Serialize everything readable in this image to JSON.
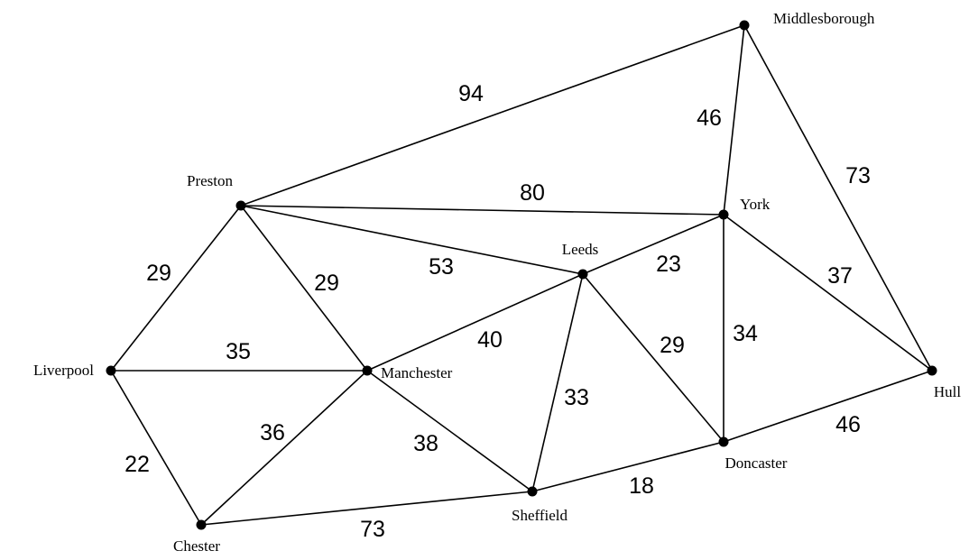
{
  "nodes": [
    {
      "id": "middlesborough",
      "label": "Middlesborough"
    },
    {
      "id": "preston",
      "label": "Preston"
    },
    {
      "id": "york",
      "label": "York"
    },
    {
      "id": "leeds",
      "label": "Leeds"
    },
    {
      "id": "liverpool",
      "label": "Liverpool"
    },
    {
      "id": "manchester",
      "label": "Manchester"
    },
    {
      "id": "hull",
      "label": "Hull"
    },
    {
      "id": "doncaster",
      "label": "Doncaster"
    },
    {
      "id": "sheffield",
      "label": "Sheffield"
    },
    {
      "id": "chester",
      "label": "Chester"
    }
  ],
  "edges": [
    {
      "from": "preston",
      "to": "middlesborough",
      "weight": "94"
    },
    {
      "from": "york",
      "to": "middlesborough",
      "weight": "46"
    },
    {
      "from": "hull",
      "to": "middlesborough",
      "weight": "73"
    },
    {
      "from": "preston",
      "to": "york",
      "weight": "80"
    },
    {
      "from": "preston",
      "to": "leeds",
      "weight": "53"
    },
    {
      "from": "preston",
      "to": "liverpool",
      "weight": "29"
    },
    {
      "from": "preston",
      "to": "manchester",
      "weight": "29"
    },
    {
      "from": "leeds",
      "to": "york",
      "weight": "23"
    },
    {
      "from": "york",
      "to": "hull",
      "weight": "37"
    },
    {
      "from": "york",
      "to": "doncaster",
      "weight": "34"
    },
    {
      "from": "manchester",
      "to": "leeds",
      "weight": "40"
    },
    {
      "from": "leeds",
      "to": "doncaster",
      "weight": "29"
    },
    {
      "from": "leeds",
      "to": "sheffield",
      "weight": "33"
    },
    {
      "from": "liverpool",
      "to": "manchester",
      "weight": "35"
    },
    {
      "from": "liverpool",
      "to": "chester",
      "weight": "22"
    },
    {
      "from": "manchester",
      "to": "chester",
      "weight": "36"
    },
    {
      "from": "manchester",
      "to": "sheffield",
      "weight": "38"
    },
    {
      "from": "doncaster",
      "to": "hull",
      "weight": "46"
    },
    {
      "from": "sheffield",
      "to": "doncaster",
      "weight": "18"
    },
    {
      "from": "chester",
      "to": "sheffield",
      "weight": "73"
    }
  ]
}
